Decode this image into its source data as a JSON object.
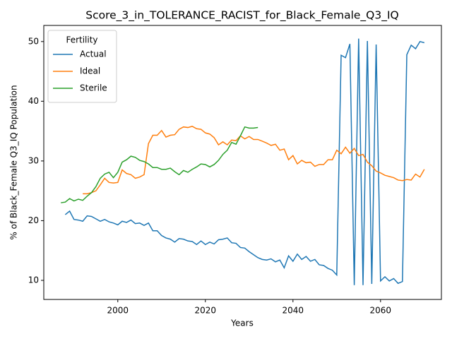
{
  "chart_data": {
    "type": "line",
    "title": "Score_3_in_TOLERANCE_RACIST_for_Black_Female_Q3_IQ",
    "xlabel": "Years",
    "ylabel": "% of Black_Female Q3_IQ Population",
    "legend_title": "Fertility",
    "legend": "upper left",
    "grid": false,
    "xlim": [
      1983.1,
      2073.9
    ],
    "ylim": [
      6.8,
      52.7
    ],
    "xticks": [
      2000,
      2020,
      2040,
      2060
    ],
    "yticks": [
      10,
      20,
      30,
      40,
      50
    ],
    "x": [
      1987,
      1988,
      1989,
      1990,
      1991,
      1992,
      1993,
      1994,
      1995,
      1996,
      1997,
      1998,
      1999,
      2000,
      2001,
      2002,
      2003,
      2004,
      2005,
      2006,
      2007,
      2008,
      2009,
      2010,
      2011,
      2012,
      2013,
      2014,
      2015,
      2016,
      2017,
      2018,
      2019,
      2020,
      2021,
      2022,
      2023,
      2024,
      2025,
      2026,
      2027,
      2028,
      2029,
      2030,
      2031,
      2032,
      2033,
      2034,
      2035,
      2036,
      2037,
      2038,
      2039,
      2040,
      2041,
      2042,
      2043,
      2044,
      2045,
      2046,
      2047,
      2048,
      2049,
      2050,
      2051,
      2052,
      2053,
      2054,
      2055,
      2056,
      2057,
      2058,
      2059,
      2060,
      2061,
      2062,
      2063,
      2064,
      2065,
      2066,
      2067,
      2068,
      2069,
      2070
    ],
    "series": [
      {
        "name": "Actual",
        "color": "#1f77b4",
        "values": [
          null,
          21.0,
          21.6,
          20.2,
          20.1,
          19.9,
          20.8,
          20.7,
          20.3,
          19.9,
          20.2,
          19.8,
          19.6,
          19.3,
          19.9,
          19.7,
          20.1,
          19.5,
          19.6,
          19.2,
          19.6,
          18.3,
          18.3,
          17.5,
          17.1,
          16.9,
          16.4,
          17.0,
          16.9,
          16.6,
          16.5,
          16.0,
          16.6,
          16.0,
          16.4,
          16.1,
          16.8,
          16.9,
          17.1,
          16.3,
          16.2,
          15.5,
          15.4,
          14.8,
          14.3,
          13.8,
          13.5,
          13.4,
          13.6,
          13.1,
          13.4,
          12.1,
          14.1,
          13.2,
          14.4,
          13.5,
          14.0,
          13.2,
          13.5,
          12.6,
          12.5,
          12.0,
          11.7,
          10.9,
          47.7,
          47.3,
          49.6,
          9.2,
          50.5,
          9.2,
          50.1,
          9.4,
          49.5,
          9.9,
          10.6,
          9.9,
          10.3,
          9.5,
          9.8,
          47.8,
          49.4,
          48.8,
          50.0,
          49.8
        ]
      },
      {
        "name": "Ideal",
        "color": "#ff7f0e",
        "values": [
          null,
          null,
          null,
          null,
          null,
          24.5,
          24.5,
          24.7,
          25.0,
          26.0,
          27.1,
          26.4,
          26.3,
          26.4,
          28.5,
          27.9,
          27.7,
          27.1,
          27.3,
          27.7,
          32.9,
          34.3,
          34.3,
          35.1,
          34.0,
          34.3,
          34.4,
          35.3,
          35.7,
          35.6,
          35.8,
          35.4,
          35.3,
          34.7,
          34.5,
          33.9,
          32.7,
          33.2,
          32.7,
          33.5,
          33.4,
          34.2,
          33.7,
          34.1,
          33.6,
          33.6,
          33.3,
          33.0,
          32.6,
          32.8,
          31.8,
          32.0,
          30.2,
          30.9,
          29.5,
          30.1,
          29.7,
          29.8,
          29.1,
          29.4,
          29.4,
          30.2,
          30.2,
          31.8,
          31.2,
          32.3,
          31.3,
          32.1,
          30.9,
          31.1,
          29.8,
          29.2,
          28.3,
          28.0,
          27.6,
          27.4,
          27.2,
          26.8,
          26.7,
          26.9,
          26.8,
          27.8,
          27.3,
          28.6
        ]
      },
      {
        "name": "Sterile",
        "color": "#2ca02c",
        "values": [
          23.0,
          23.1,
          23.7,
          23.3,
          23.6,
          23.4,
          24.1,
          24.7,
          25.7,
          27.1,
          27.8,
          28.1,
          27.2,
          28.1,
          29.8,
          30.2,
          30.8,
          30.6,
          30.1,
          29.9,
          29.5,
          28.9,
          28.9,
          28.6,
          28.6,
          28.8,
          28.2,
          27.7,
          28.4,
          28.1,
          28.6,
          29.0,
          29.5,
          29.4,
          29.0,
          29.4,
          30.1,
          31.1,
          31.8,
          33.1,
          32.8,
          34.2,
          35.7,
          35.5,
          35.5,
          35.6,
          null,
          null,
          null,
          null,
          null,
          null,
          null,
          null,
          null,
          null,
          null,
          null,
          null,
          null,
          null,
          null,
          null,
          null,
          null,
          null,
          null,
          null,
          null,
          null,
          null,
          null,
          null,
          null,
          null,
          null,
          null,
          null,
          null,
          null,
          null,
          null,
          null,
          null
        ]
      }
    ]
  }
}
